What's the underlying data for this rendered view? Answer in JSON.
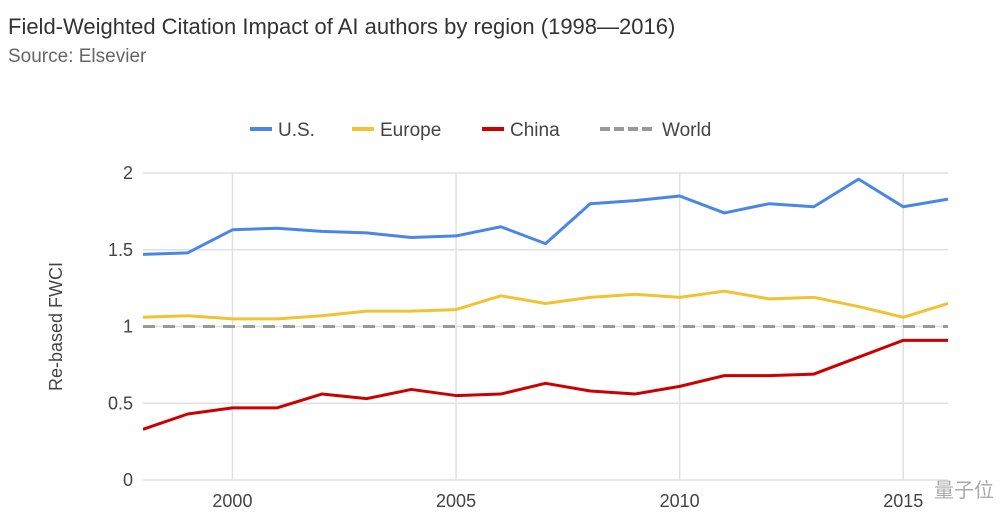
{
  "chart_data": {
    "type": "line",
    "title": "Field-Weighted Citation Impact of AI authors by region (1998—2016)",
    "subtitle": "Source: Elsevier",
    "xlabel": "",
    "ylabel": "Re-based FWCI",
    "x": [
      1998,
      1999,
      2000,
      2001,
      2002,
      2003,
      2004,
      2005,
      2006,
      2007,
      2008,
      2009,
      2010,
      2011,
      2012,
      2013,
      2014,
      2015,
      2016
    ],
    "xticks": [
      "2000",
      "2005",
      "2010",
      "2015"
    ],
    "xtick_values": [
      2000,
      2005,
      2010,
      2015
    ],
    "yticks": [
      "0",
      "0.5",
      "1",
      "1.5",
      "2"
    ],
    "ytick_values": [
      0,
      0.5,
      1,
      1.5,
      2
    ],
    "ylim": [
      0,
      2
    ],
    "xlim": [
      1998,
      2016
    ],
    "grid": true,
    "legend_position": "top",
    "series": [
      {
        "name": "U.S.",
        "color": "#4a86e8",
        "dashed": false,
        "values": [
          1.47,
          1.48,
          1.63,
          1.64,
          1.62,
          1.61,
          1.58,
          1.59,
          1.65,
          1.54,
          1.8,
          1.82,
          1.85,
          1.74,
          1.8,
          1.78,
          1.96,
          1.78,
          1.83
        ]
      },
      {
        "name": "Europe",
        "color": "#f1c232",
        "dashed": false,
        "values": [
          1.06,
          1.07,
          1.05,
          1.05,
          1.07,
          1.1,
          1.1,
          1.11,
          1.2,
          1.15,
          1.19,
          1.21,
          1.19,
          1.23,
          1.18,
          1.19,
          1.13,
          1.06,
          1.15
        ]
      },
      {
        "name": "China",
        "color": "#cc0000",
        "dashed": false,
        "values": [
          0.33,
          0.43,
          0.47,
          0.47,
          0.56,
          0.53,
          0.59,
          0.55,
          0.56,
          0.63,
          0.58,
          0.56,
          0.61,
          0.68,
          0.68,
          0.69,
          0.8,
          0.91,
          0.91
        ]
      },
      {
        "name": "World",
        "color": "#999999",
        "dashed": true,
        "values": [
          1,
          1,
          1,
          1,
          1,
          1,
          1,
          1,
          1,
          1,
          1,
          1,
          1,
          1,
          1,
          1,
          1,
          1,
          1
        ]
      }
    ]
  },
  "watermark": "量子位"
}
